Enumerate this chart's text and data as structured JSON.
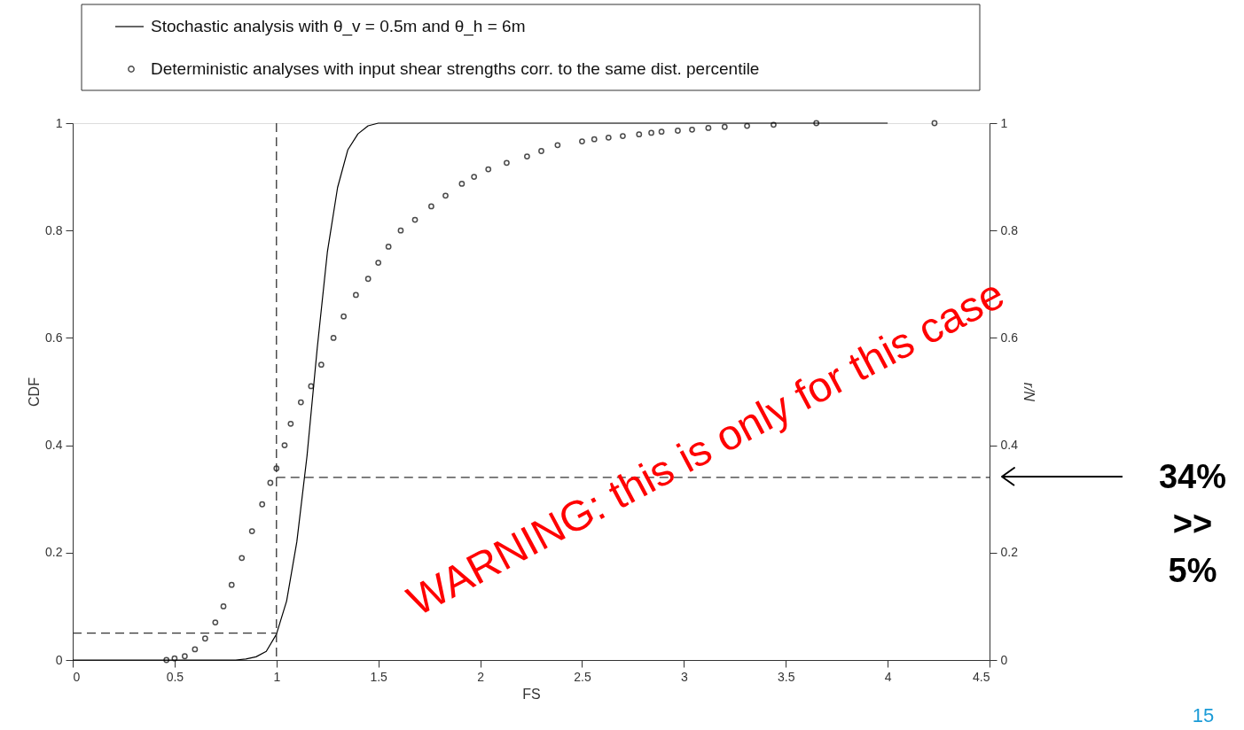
{
  "chart_data": {
    "type": "line",
    "xlabel": "FS",
    "ylabel": "CDF",
    "y2label": "r/N",
    "xlim": [
      0,
      4.5
    ],
    "xticks": [
      0,
      0.5,
      1,
      1.5,
      2,
      2.5,
      3,
      3.5,
      4,
      4.5
    ],
    "ylim": [
      0,
      1
    ],
    "yticks": [
      0,
      0.2,
      0.4,
      0.6,
      0.8,
      1
    ],
    "y2lim": [
      0,
      1
    ],
    "y2ticks": [
      0,
      0.2,
      0.4,
      0.6,
      0.8,
      1
    ],
    "legend": "top",
    "grid": false,
    "series": [
      {
        "name": "Stochastic analysis with θ_v = 0.5m and θ_h = 6m",
        "type": "line",
        "color": "#000000",
        "line_style": "solid",
        "marker": "none",
        "x": [
          0,
          0.8,
          0.85,
          0.9,
          0.95,
          1.0,
          1.05,
          1.1,
          1.15,
          1.2,
          1.25,
          1.3,
          1.35,
          1.4,
          1.45,
          1.5,
          4
        ],
        "values": [
          0,
          0,
          0.002,
          0.006,
          0.016,
          0.048,
          0.11,
          0.22,
          0.38,
          0.58,
          0.76,
          0.88,
          0.95,
          0.98,
          0.995,
          1,
          1
        ]
      },
      {
        "name": "Deterministic analyses with input shear strengths corr. to the same dist. percentile",
        "type": "scatter",
        "axis": "y2",
        "color": "#000000",
        "marker": "circle",
        "x": [
          0.46,
          0.5,
          0.55,
          0.6,
          0.65,
          0.7,
          0.74,
          0.78,
          0.83,
          0.88,
          0.93,
          0.97,
          1.0,
          1.04,
          1.07,
          1.12,
          1.17,
          1.22,
          1.28,
          1.33,
          1.39,
          1.45,
          1.5,
          1.55,
          1.61,
          1.68,
          1.76,
          1.83,
          1.91,
          1.97,
          2.04,
          2.13,
          2.23,
          2.3,
          2.38,
          2.5,
          2.56,
          2.63,
          2.7,
          2.78,
          2.84,
          2.89,
          2.97,
          3.04,
          3.12,
          3.2,
          3.31,
          3.44,
          3.65,
          4.23
        ],
        "values": [
          0,
          0.003,
          0.007,
          0.02,
          0.04,
          0.07,
          0.1,
          0.14,
          0.19,
          0.24,
          0.29,
          0.33,
          0.357,
          0.4,
          0.44,
          0.48,
          0.51,
          0.55,
          0.6,
          0.64,
          0.68,
          0.71,
          0.74,
          0.77,
          0.8,
          0.82,
          0.845,
          0.865,
          0.887,
          0.9,
          0.914,
          0.926,
          0.938,
          0.948,
          0.959,
          0.966,
          0.97,
          0.973,
          0.976,
          0.979,
          0.982,
          0.984,
          0.986,
          0.988,
          0.991,
          0.993,
          0.995,
          0.997,
          1,
          1
        ]
      }
    ],
    "ref_lines": [
      {
        "axis": "x",
        "value": 1,
        "line_style": "dashed"
      },
      {
        "axis": "y",
        "value": 0.05,
        "line_style": "dashed"
      },
      {
        "axis": "y",
        "value": 0.34,
        "line_style": "dashed"
      }
    ],
    "annotations": [
      "WARNING: this is only for this case",
      "34% >> 5%",
      "15"
    ]
  }
}
